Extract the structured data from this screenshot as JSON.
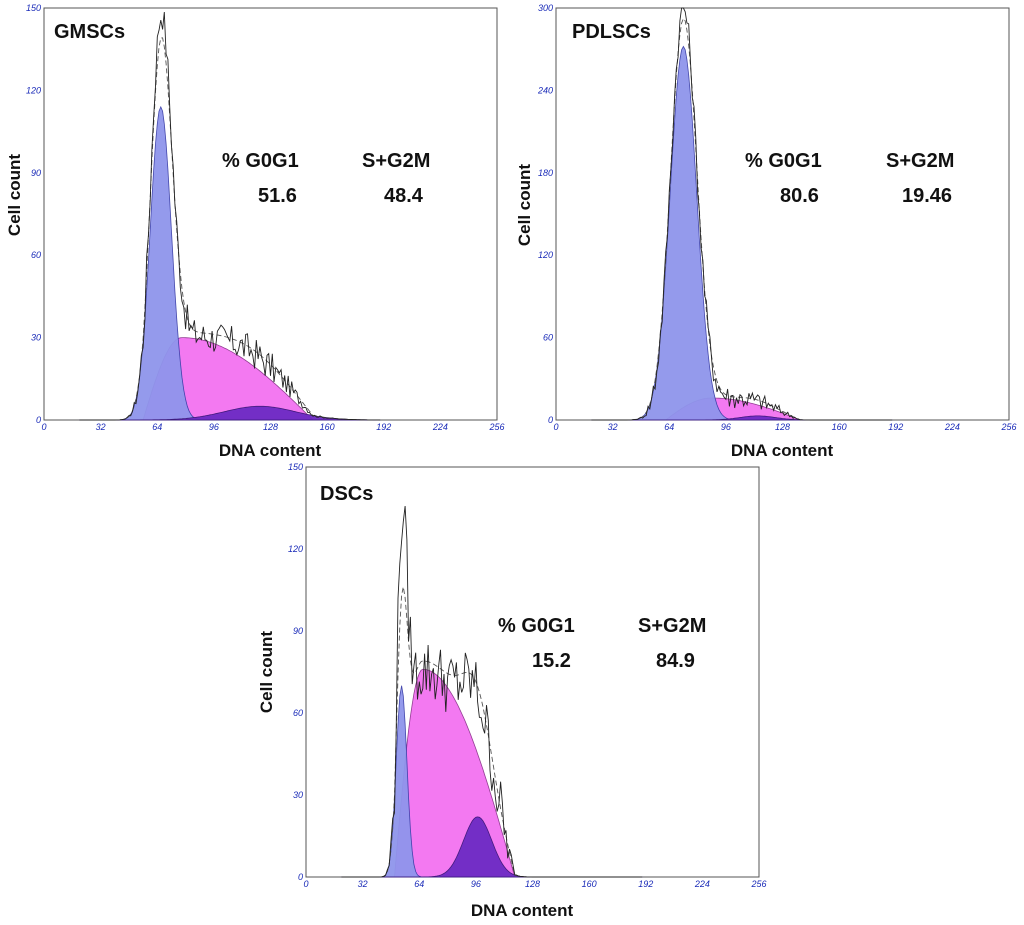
{
  "chart_data": [
    {
      "type": "area",
      "title": "GMSCs",
      "xlabel": "DNA content",
      "ylabel": "Cell count",
      "xlim": [
        0,
        256
      ],
      "ylim": [
        0,
        150
      ],
      "x_ticks": [
        "0",
        "32",
        "64",
        "96",
        "128",
        "160",
        "192",
        "224",
        "256"
      ],
      "y_ticks": [
        "0",
        "30",
        "60",
        "90",
        "120",
        "150"
      ],
      "headers": [
        "% G0G1",
        "S+G2M"
      ],
      "values": [
        "51.6",
        "48.4"
      ],
      "components": {
        "g0g1": {
          "mean": 66,
          "sd": 6,
          "height": 114
        },
        "s_phase": {
          "start": 56,
          "peak_x": 78,
          "end": 152,
          "peak": 30
        },
        "g2m": {
          "mean": 122,
          "sd": 20,
          "height": 5
        }
      },
      "raw_peak": 148,
      "noise_amplitude": 6
    },
    {
      "type": "area",
      "title": "PDLSCs",
      "xlabel": "DNA content",
      "ylabel": "Cell count",
      "xlim": [
        0,
        256
      ],
      "ylim": [
        0,
        300
      ],
      "x_ticks": [
        "0",
        "32",
        "64",
        "96",
        "128",
        "160",
        "192",
        "224",
        "256"
      ],
      "y_ticks": [
        "0",
        "60",
        "120",
        "180",
        "240",
        "300"
      ],
      "headers": [
        "% G0G1",
        "S+G2M"
      ],
      "values": [
        "80.6",
        "19.46"
      ],
      "components": {
        "g0g1": {
          "mean": 72,
          "sd": 7.5,
          "height": 272
        },
        "s_phase": {
          "start": 62,
          "peak_x": 88,
          "end": 138,
          "peak": 16
        },
        "g2m": {
          "mean": 114,
          "sd": 10,
          "height": 3
        }
      },
      "raw_peak": 300,
      "noise_amplitude": 10
    },
    {
      "type": "area",
      "title": "DSCs",
      "xlabel": "DNA content",
      "ylabel": "Cell count",
      "xlim": [
        0,
        256
      ],
      "ylim": [
        0,
        150
      ],
      "x_ticks": [
        "0",
        "32",
        "64",
        "96",
        "128",
        "160",
        "192",
        "224",
        "256"
      ],
      "y_ticks": [
        "0",
        "30",
        "60",
        "90",
        "120",
        "150"
      ],
      "headers": [
        "% G0G1",
        "S+G2M"
      ],
      "values": [
        "15.2",
        "84.9"
      ],
      "components": {
        "g0g1": {
          "mean": 54,
          "sd": 3,
          "height": 70
        },
        "s_phase": {
          "start": 50,
          "peak_x": 66,
          "end": 118,
          "peak": 76
        },
        "g2m": {
          "mean": 97,
          "sd": 8,
          "height": 22
        }
      },
      "raw_peak": 136,
      "noise_amplitude": 12
    }
  ]
}
